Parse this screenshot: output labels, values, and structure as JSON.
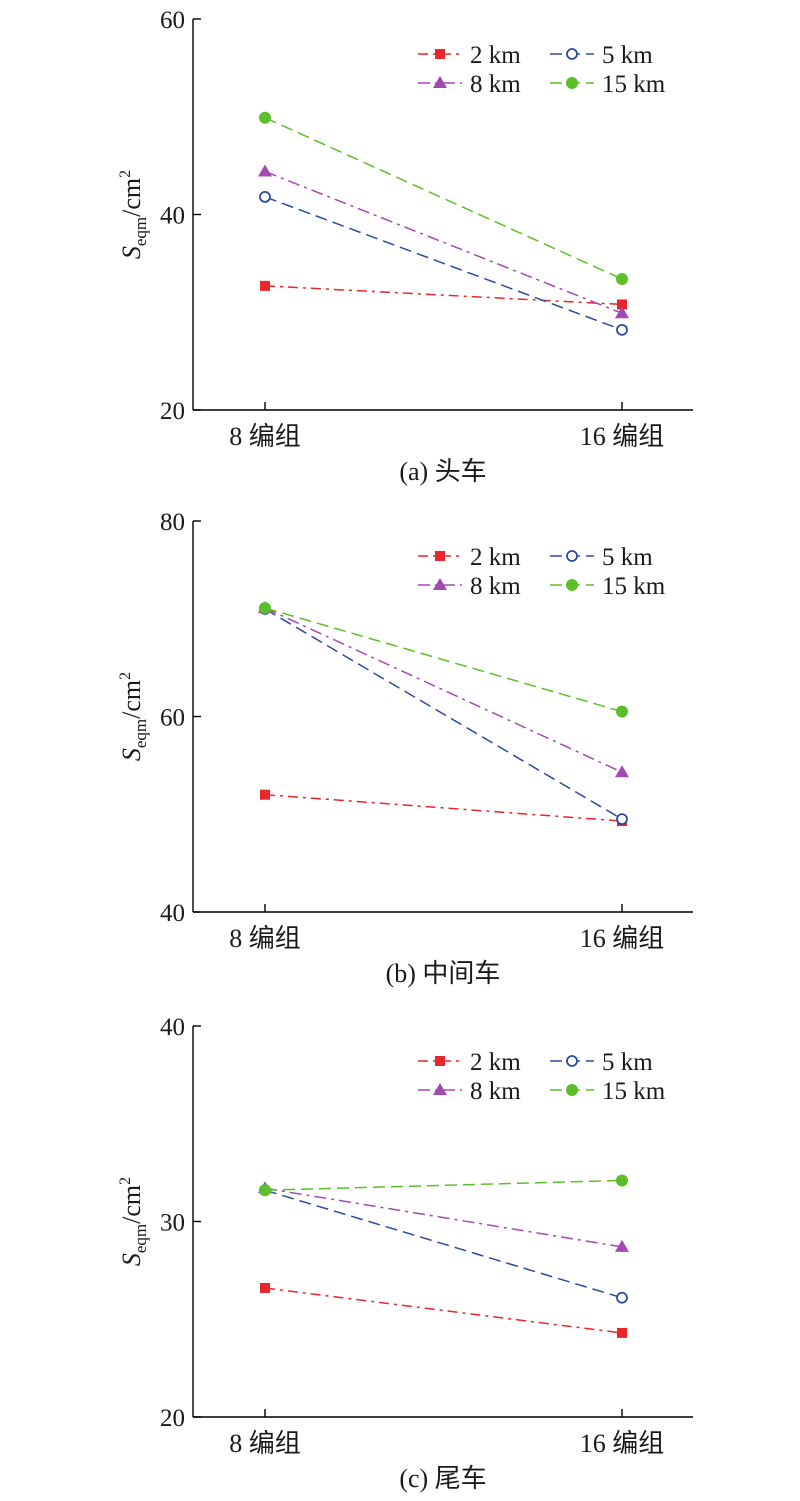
{
  "chart_data": [
    {
      "type": "line",
      "caption": "(a) 头车",
      "ylabel": {
        "main": "S",
        "sub": "eqm",
        "unit": "/cm",
        "sup": "2"
      },
      "ylim": [
        20,
        60
      ],
      "yticks": [
        20,
        40,
        60
      ],
      "categories": [
        "8 编组",
        "16 编组"
      ],
      "series": [
        {
          "name": "2 km",
          "values": [
            32.7,
            30.8
          ]
        },
        {
          "name": "5 km",
          "values": [
            41.8,
            28.2
          ]
        },
        {
          "name": "8 km",
          "values": [
            44.4,
            29.9
          ]
        },
        {
          "name": "15 km",
          "values": [
            49.9,
            33.4
          ]
        }
      ],
      "legend": "top-right",
      "grid": false
    },
    {
      "type": "line",
      "caption": "(b) 中间车",
      "ylabel": {
        "main": "S",
        "sub": "eqm",
        "unit": "/cm",
        "sup": "2"
      },
      "ylim": [
        40,
        80
      ],
      "yticks": [
        40,
        60,
        80
      ],
      "categories": [
        "8 编组",
        "16 编组"
      ],
      "series": [
        {
          "name": "2 km",
          "values": [
            52.0,
            49.3
          ]
        },
        {
          "name": "5 km",
          "values": [
            71.0,
            49.5
          ]
        },
        {
          "name": "8 km",
          "values": [
            71.1,
            54.3
          ]
        },
        {
          "name": "15 km",
          "values": [
            71.1,
            60.5
          ]
        }
      ],
      "legend": "top-right",
      "grid": false
    },
    {
      "type": "line",
      "caption": "(c) 尾车",
      "ylabel": {
        "main": "S",
        "sub": "eqm",
        "unit": "/cm",
        "sup": "2"
      },
      "ylim": [
        20,
        40
      ],
      "yticks": [
        20,
        30,
        40
      ],
      "categories": [
        "8 编组",
        "16 编组"
      ],
      "series": [
        {
          "name": "2 km",
          "values": [
            26.6,
            24.3
          ]
        },
        {
          "name": "5 km",
          "values": [
            31.6,
            26.1
          ]
        },
        {
          "name": "8 km",
          "values": [
            31.7,
            28.7
          ]
        },
        {
          "name": "15 km",
          "values": [
            31.6,
            32.1
          ]
        }
      ],
      "legend": "top-right",
      "grid": false
    }
  ],
  "styles": [
    {
      "color": "#e8262b",
      "marker": "square",
      "dash": "10,5,3,5"
    },
    {
      "color": "#2b4aa0",
      "marker": "open-circle",
      "dash": "12,6"
    },
    {
      "color": "#a548b3",
      "marker": "triangle",
      "dash": "12,5,3,5"
    },
    {
      "color": "#5cbf2a",
      "marker": "circle",
      "dash": "12,6"
    }
  ]
}
